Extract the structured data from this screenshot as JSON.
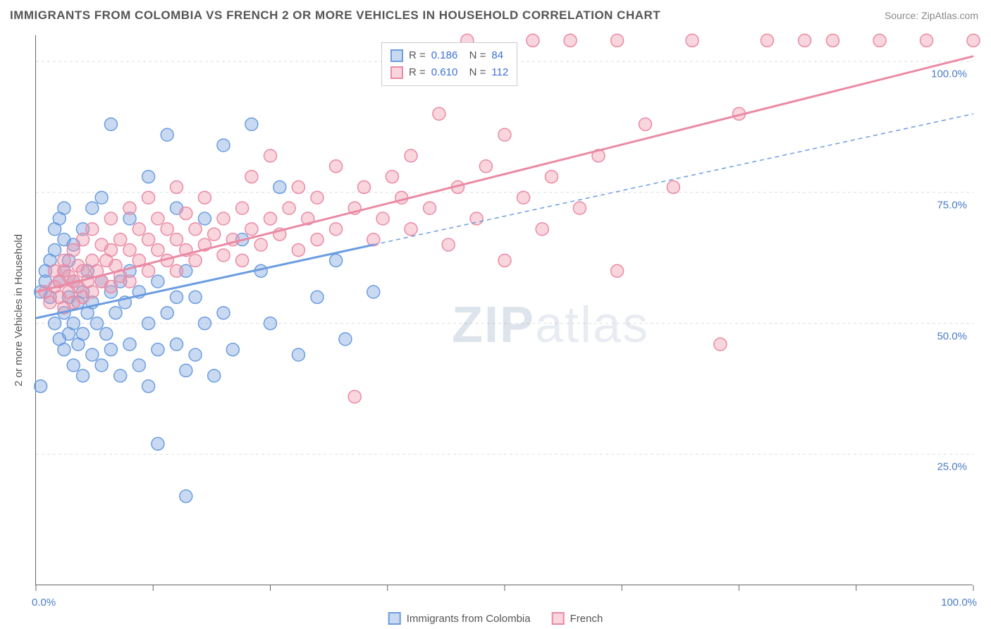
{
  "title": "IMMIGRANTS FROM COLOMBIA VS FRENCH 2 OR MORE VEHICLES IN HOUSEHOLD CORRELATION CHART",
  "source": "Source: ZipAtlas.com",
  "y_axis_title": "2 or more Vehicles in Household",
  "watermark": {
    "bold": "ZIP",
    "rest": "atlas"
  },
  "chart": {
    "type": "scatter",
    "background_color": "#ffffff",
    "grid_color": "#dddddd",
    "axis_color": "#666666",
    "xlim": [
      0,
      100
    ],
    "ylim": [
      0,
      105
    ],
    "y_ticks": [
      25,
      50,
      75,
      100
    ],
    "y_tick_labels": [
      "25.0%",
      "50.0%",
      "75.0%",
      "100.0%"
    ],
    "x_ticks": [
      0,
      12.5,
      25,
      37.5,
      50,
      62.5,
      75,
      87.5,
      100
    ],
    "x_min_label": "0.0%",
    "x_max_label": "100.0%",
    "marker_radius": 9,
    "marker_opacity": 0.45,
    "series": [
      {
        "name": "Immigrants from Colombia",
        "color_fill": "rgba(120,160,220,0.4)",
        "color_stroke": "#6a9de0",
        "R": "0.186",
        "N": "84",
        "trend": {
          "x1": 0,
          "y1": 51,
          "x2": 36,
          "y2": 65,
          "style": "solid",
          "width": 3
        },
        "trend_ext": {
          "x1": 36,
          "y1": 65,
          "x2": 100,
          "y2": 90,
          "style": "dashed",
          "width": 1.5
        },
        "points": [
          [
            0.5,
            38
          ],
          [
            0.5,
            56
          ],
          [
            1,
            58
          ],
          [
            1,
            60
          ],
          [
            1.5,
            55
          ],
          [
            1.5,
            62
          ],
          [
            2,
            50
          ],
          [
            2,
            64
          ],
          [
            2,
            68
          ],
          [
            2.5,
            47
          ],
          [
            2.5,
            58
          ],
          [
            2.5,
            70
          ],
          [
            3,
            45
          ],
          [
            3,
            52
          ],
          [
            3,
            60
          ],
          [
            3,
            66
          ],
          [
            3,
            72
          ],
          [
            3.5,
            48
          ],
          [
            3.5,
            55
          ],
          [
            3.5,
            62
          ],
          [
            4,
            42
          ],
          [
            4,
            50
          ],
          [
            4,
            58
          ],
          [
            4,
            65
          ],
          [
            4.5,
            46
          ],
          [
            4.5,
            54
          ],
          [
            5,
            40
          ],
          [
            5,
            48
          ],
          [
            5,
            56
          ],
          [
            5,
            68
          ],
          [
            5.5,
            52
          ],
          [
            5.5,
            60
          ],
          [
            6,
            44
          ],
          [
            6,
            54
          ],
          [
            6,
            72
          ],
          [
            6.5,
            50
          ],
          [
            7,
            42
          ],
          [
            7,
            58
          ],
          [
            7,
            74
          ],
          [
            7.5,
            48
          ],
          [
            8,
            45
          ],
          [
            8,
            56
          ],
          [
            8,
            88
          ],
          [
            8.5,
            52
          ],
          [
            9,
            40
          ],
          [
            9,
            58
          ],
          [
            9.5,
            54
          ],
          [
            10,
            46
          ],
          [
            10,
            60
          ],
          [
            10,
            70
          ],
          [
            11,
            42
          ],
          [
            11,
            56
          ],
          [
            12,
            38
          ],
          [
            12,
            50
          ],
          [
            12,
            78
          ],
          [
            13,
            27
          ],
          [
            13,
            45
          ],
          [
            13,
            58
          ],
          [
            14,
            52
          ],
          [
            14,
            86
          ],
          [
            15,
            46
          ],
          [
            15,
            55
          ],
          [
            15,
            72
          ],
          [
            16,
            17
          ],
          [
            16,
            41
          ],
          [
            16,
            60
          ],
          [
            17,
            44
          ],
          [
            17,
            55
          ],
          [
            18,
            50
          ],
          [
            18,
            70
          ],
          [
            19,
            40
          ],
          [
            20,
            52
          ],
          [
            20,
            84
          ],
          [
            21,
            45
          ],
          [
            22,
            66
          ],
          [
            23,
            88
          ],
          [
            24,
            60
          ],
          [
            25,
            50
          ],
          [
            26,
            76
          ],
          [
            28,
            44
          ],
          [
            30,
            55
          ],
          [
            32,
            62
          ],
          [
            33,
            47
          ],
          [
            36,
            56
          ]
        ]
      },
      {
        "name": "French",
        "color_fill": "rgba(240,150,170,0.4)",
        "color_stroke": "#ea8aa5",
        "R": "0.610",
        "N": "112",
        "trend": {
          "x1": 0,
          "y1": 56,
          "x2": 100,
          "y2": 101,
          "style": "solid",
          "width": 3
        },
        "points": [
          [
            1,
            56
          ],
          [
            1.5,
            54
          ],
          [
            2,
            57
          ],
          [
            2,
            60
          ],
          [
            2.5,
            55
          ],
          [
            2.5,
            58
          ],
          [
            3,
            53
          ],
          [
            3,
            60
          ],
          [
            3,
            62
          ],
          [
            3.5,
            56
          ],
          [
            3.5,
            59
          ],
          [
            4,
            54
          ],
          [
            4,
            58
          ],
          [
            4,
            64
          ],
          [
            4.5,
            57
          ],
          [
            4.5,
            61
          ],
          [
            5,
            55
          ],
          [
            5,
            60
          ],
          [
            5,
            66
          ],
          [
            5.5,
            58
          ],
          [
            6,
            56
          ],
          [
            6,
            62
          ],
          [
            6,
            68
          ],
          [
            6.5,
            60
          ],
          [
            7,
            58
          ],
          [
            7,
            65
          ],
          [
            7.5,
            62
          ],
          [
            8,
            57
          ],
          [
            8,
            64
          ],
          [
            8,
            70
          ],
          [
            8.5,
            61
          ],
          [
            9,
            59
          ],
          [
            9,
            66
          ],
          [
            10,
            58
          ],
          [
            10,
            64
          ],
          [
            10,
            72
          ],
          [
            11,
            62
          ],
          [
            11,
            68
          ],
          [
            12,
            60
          ],
          [
            12,
            66
          ],
          [
            12,
            74
          ],
          [
            13,
            64
          ],
          [
            13,
            70
          ],
          [
            14,
            62
          ],
          [
            14,
            68
          ],
          [
            15,
            60
          ],
          [
            15,
            66
          ],
          [
            15,
            76
          ],
          [
            16,
            64
          ],
          [
            16,
            71
          ],
          [
            17,
            62
          ],
          [
            17,
            68
          ],
          [
            18,
            65
          ],
          [
            18,
            74
          ],
          [
            19,
            67
          ],
          [
            20,
            63
          ],
          [
            20,
            70
          ],
          [
            21,
            66
          ],
          [
            22,
            62
          ],
          [
            22,
            72
          ],
          [
            23,
            68
          ],
          [
            23,
            78
          ],
          [
            24,
            65
          ],
          [
            25,
            70
          ],
          [
            25,
            82
          ],
          [
            26,
            67
          ],
          [
            27,
            72
          ],
          [
            28,
            64
          ],
          [
            28,
            76
          ],
          [
            29,
            70
          ],
          [
            30,
            66
          ],
          [
            30,
            74
          ],
          [
            32,
            68
          ],
          [
            32,
            80
          ],
          [
            34,
            36
          ],
          [
            34,
            72
          ],
          [
            35,
            76
          ],
          [
            36,
            66
          ],
          [
            37,
            70
          ],
          [
            38,
            78
          ],
          [
            39,
            74
          ],
          [
            40,
            68
          ],
          [
            40,
            82
          ],
          [
            42,
            72
          ],
          [
            43,
            90
          ],
          [
            44,
            65
          ],
          [
            45,
            76
          ],
          [
            46,
            104
          ],
          [
            47,
            70
          ],
          [
            48,
            80
          ],
          [
            50,
            62
          ],
          [
            50,
            86
          ],
          [
            52,
            74
          ],
          [
            53,
            104
          ],
          [
            54,
            68
          ],
          [
            55,
            78
          ],
          [
            57,
            104
          ],
          [
            58,
            72
          ],
          [
            60,
            82
          ],
          [
            62,
            60
          ],
          [
            62,
            104
          ],
          [
            65,
            88
          ],
          [
            68,
            76
          ],
          [
            70,
            104
          ],
          [
            73,
            46
          ],
          [
            75,
            90
          ],
          [
            78,
            104
          ],
          [
            82,
            104
          ],
          [
            85,
            104
          ],
          [
            90,
            104
          ],
          [
            95,
            104
          ],
          [
            100,
            104
          ]
        ]
      }
    ]
  },
  "legend_bottom": [
    {
      "swatch": "blue",
      "label": "Immigrants from Colombia"
    },
    {
      "swatch": "pink",
      "label": "French"
    }
  ]
}
